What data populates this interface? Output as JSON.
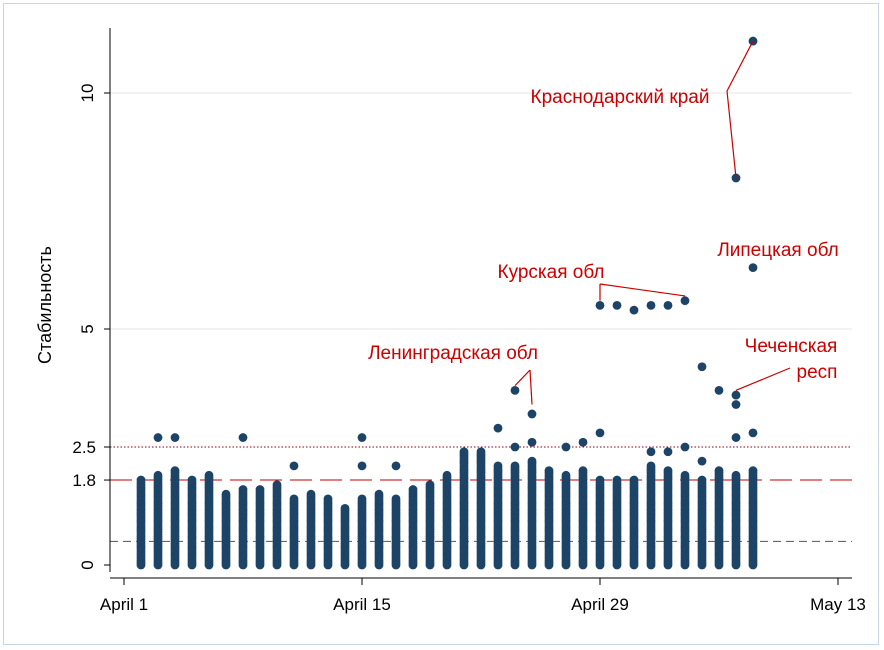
{
  "chart_data": {
    "type": "scatter",
    "title": "",
    "ylabel": "Стабильность",
    "xlabel": "",
    "x_unit": "day (April 1 = 1)",
    "xlim": [
      -0.5,
      43.5
    ],
    "ylim": [
      -0.1,
      11.5
    ],
    "xticks": [
      {
        "value": 1,
        "label": "April 1"
      },
      {
        "value": 15,
        "label": "April 15"
      },
      {
        "value": 29,
        "label": "April 29"
      },
      {
        "value": 43,
        "label": "May 13"
      }
    ],
    "yticks": [
      {
        "value": 0,
        "label": "0"
      },
      {
        "value": 1.8,
        "label": "1.8"
      },
      {
        "value": 2.5,
        "label": "2.5"
      },
      {
        "value": 5,
        "label": "5"
      },
      {
        "value": 10,
        "label": "10"
      }
    ],
    "grid": true,
    "colors": {
      "points": "#1d4467",
      "annotation": "#cc0000",
      "ref_dashed": "#c00000",
      "ref_dotted": "#8b0000",
      "ref_lower": "#555555"
    },
    "reference_lines": [
      {
        "y": 2.5,
        "style": "dotted"
      },
      {
        "y": 1.8,
        "style": "dashed"
      },
      {
        "y": 0.5,
        "style": "dashed-lower"
      }
    ],
    "columns": [
      {
        "x": 2,
        "max": 1.8,
        "extra": []
      },
      {
        "x": 3,
        "max": 1.9,
        "extra": [
          2.7
        ]
      },
      {
        "x": 4,
        "max": 2.0,
        "extra": [
          2.7
        ]
      },
      {
        "x": 5,
        "max": 1.8,
        "extra": []
      },
      {
        "x": 6,
        "max": 1.9,
        "extra": []
      },
      {
        "x": 7,
        "max": 1.5,
        "extra": []
      },
      {
        "x": 8,
        "max": 1.6,
        "extra": [
          2.7
        ]
      },
      {
        "x": 9,
        "max": 1.6,
        "extra": []
      },
      {
        "x": 10,
        "max": 1.7,
        "extra": []
      },
      {
        "x": 11,
        "max": 1.4,
        "extra": [
          2.1
        ]
      },
      {
        "x": 12,
        "max": 1.5,
        "extra": []
      },
      {
        "x": 13,
        "max": 1.4,
        "extra": []
      },
      {
        "x": 14,
        "max": 1.2,
        "extra": []
      },
      {
        "x": 15,
        "max": 1.4,
        "extra": [
          2.7,
          2.1
        ]
      },
      {
        "x": 16,
        "max": 1.5,
        "extra": []
      },
      {
        "x": 17,
        "max": 1.4,
        "extra": [
          2.1
        ]
      },
      {
        "x": 18,
        "max": 1.6,
        "extra": []
      },
      {
        "x": 19,
        "max": 1.7,
        "extra": []
      },
      {
        "x": 20,
        "max": 1.9,
        "extra": []
      },
      {
        "x": 21,
        "max": 2.4,
        "extra": []
      },
      {
        "x": 22,
        "max": 2.4,
        "extra": []
      },
      {
        "x": 23,
        "max": 2.1,
        "extra": [
          2.9
        ]
      },
      {
        "x": 24,
        "max": 2.1,
        "extra": [
          2.5,
          3.7
        ]
      },
      {
        "x": 25,
        "max": 2.2,
        "extra": [
          2.6,
          3.2
        ]
      },
      {
        "x": 26,
        "max": 2.0,
        "extra": []
      },
      {
        "x": 27,
        "max": 1.9,
        "extra": [
          2.5
        ]
      },
      {
        "x": 28,
        "max": 2.0,
        "extra": [
          2.6
        ]
      },
      {
        "x": 29,
        "max": 1.8,
        "extra": [
          2.8,
          5.5
        ]
      },
      {
        "x": 30,
        "max": 1.8,
        "extra": [
          5.5
        ]
      },
      {
        "x": 31,
        "max": 1.8,
        "extra": [
          5.4
        ]
      },
      {
        "x": 32,
        "max": 2.1,
        "extra": [
          2.4,
          5.5
        ]
      },
      {
        "x": 33,
        "max": 2.0,
        "extra": [
          2.4,
          5.5
        ]
      },
      {
        "x": 34,
        "max": 1.9,
        "extra": [
          2.5,
          5.6
        ]
      },
      {
        "x": 35,
        "max": 1.8,
        "extra": [
          2.2,
          4.2
        ]
      },
      {
        "x": 36,
        "max": 2.0,
        "extra": [
          3.7
        ]
      },
      {
        "x": 37,
        "max": 1.9,
        "extra": [
          2.7,
          3.4,
          3.6,
          8.2
        ]
      },
      {
        "x": 38,
        "max": 2.0,
        "extra": [
          2.8,
          6.3,
          11.1
        ]
      }
    ],
    "annotations": [
      {
        "text": "Краснодарский край",
        "targets": [
          [
            38,
            11.1
          ],
          [
            37,
            8.2
          ]
        ],
        "anchor": [
          36.7,
          10
        ]
      },
      {
        "text": "Липецкая обл",
        "targets": [],
        "anchor": [
          38,
          6.7
        ]
      },
      {
        "text": "Курская обл",
        "targets": [
          [
            29,
            5.6
          ],
          [
            34,
            5.7
          ]
        ],
        "anchor": [
          31,
          6
        ]
      },
      {
        "text": "Ленинградская обл",
        "targets": [
          [
            24,
            3.8
          ],
          [
            25,
            3.4
          ]
        ],
        "anchor": [
          25,
          4.4
        ]
      },
      {
        "text": "Чеченская",
        "targets": [],
        "anchor": [
          39,
          4.6
        ]
      },
      {
        "text": "респ",
        "targets": [
          [
            37,
            3.7
          ]
        ],
        "anchor": [
          40,
          4.1
        ]
      }
    ]
  }
}
